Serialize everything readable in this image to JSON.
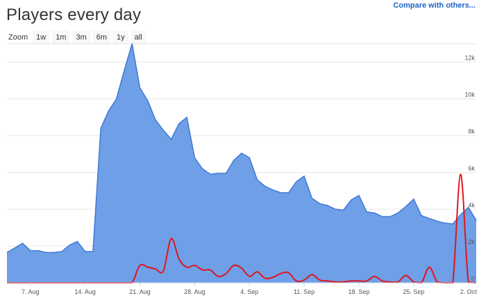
{
  "page": {
    "title": "Players every day",
    "compare_link": "Compare with others...",
    "zoom_label": "Zoom",
    "zoom_options": [
      "1w",
      "1m",
      "3m",
      "6m",
      "1y",
      "all"
    ]
  },
  "colors": {
    "area_fill": "#6f9fe6",
    "area_line": "#3f79d6",
    "series2": "#e0141e",
    "grid": "#e6e6e6"
  },
  "chart_data": {
    "type": "area",
    "title": "Players every day",
    "xlabel": "",
    "ylabel": "",
    "ylim": [
      0,
      13000
    ],
    "grid": true,
    "y_ticks": [
      0,
      2000,
      4000,
      6000,
      8000,
      10000,
      12000
    ],
    "y_tick_labels": [
      "0",
      "2k",
      "4k",
      "6k",
      "8k",
      "10k",
      "12k"
    ],
    "x_ticks": [
      "2023-08-07",
      "2023-08-14",
      "2023-08-21",
      "2023-08-28",
      "2023-09-04",
      "2023-09-11",
      "2023-09-18",
      "2023-09-25",
      "2023-10-02"
    ],
    "x_tick_labels": [
      "7. Aug",
      "14. Aug",
      "21. Aug",
      "28. Aug",
      "4. Sep",
      "11. Sep",
      "18. Sep",
      "25. Sep",
      "2. Oct"
    ],
    "x": [
      "2023-08-04",
      "2023-08-05",
      "2023-08-06",
      "2023-08-07",
      "2023-08-08",
      "2023-08-09",
      "2023-08-10",
      "2023-08-11",
      "2023-08-12",
      "2023-08-13",
      "2023-08-14",
      "2023-08-15",
      "2023-08-16",
      "2023-08-17",
      "2023-08-18",
      "2023-08-19",
      "2023-08-20",
      "2023-08-21",
      "2023-08-22",
      "2023-08-23",
      "2023-08-24",
      "2023-08-25",
      "2023-08-26",
      "2023-08-27",
      "2023-08-28",
      "2023-08-29",
      "2023-08-30",
      "2023-08-31",
      "2023-09-01",
      "2023-09-02",
      "2023-09-03",
      "2023-09-04",
      "2023-09-05",
      "2023-09-06",
      "2023-09-07",
      "2023-09-08",
      "2023-09-09",
      "2023-09-10",
      "2023-09-11",
      "2023-09-12",
      "2023-09-13",
      "2023-09-14",
      "2023-09-15",
      "2023-09-16",
      "2023-09-17",
      "2023-09-18",
      "2023-09-19",
      "2023-09-20",
      "2023-09-21",
      "2023-09-22",
      "2023-09-23",
      "2023-09-24",
      "2023-09-25",
      "2023-09-26",
      "2023-09-27",
      "2023-09-28",
      "2023-09-29",
      "2023-09-30",
      "2023-10-01",
      "2023-10-02",
      "2023-10-03"
    ],
    "series": [
      {
        "values": [
          1650,
          1900,
          2150,
          1750,
          1750,
          1650,
          1650,
          1700,
          2050,
          2250,
          1700,
          1700,
          8400,
          9350,
          10000,
          11550,
          13000,
          10600,
          9900,
          8850,
          8300,
          7800,
          8650,
          9000,
          6800,
          6200,
          5900,
          5950,
          5950,
          6650,
          7050,
          6800,
          5600,
          5250,
          5050,
          4900,
          4900,
          5500,
          5800,
          4600,
          4300,
          4200,
          4000,
          3950,
          4500,
          4750,
          3850,
          3800,
          3600,
          3600,
          3800,
          4150,
          4550,
          3650,
          3500,
          3350,
          3250,
          3200,
          3700,
          4100,
          3400
        ]
      },
      {
        "values": [
          0,
          0,
          0,
          0,
          0,
          0,
          0,
          0,
          0,
          0,
          0,
          0,
          0,
          0,
          0,
          0,
          0,
          950,
          850,
          750,
          650,
          2400,
          1300,
          850,
          950,
          700,
          700,
          350,
          500,
          950,
          800,
          350,
          600,
          250,
          300,
          500,
          550,
          100,
          150,
          450,
          150,
          100,
          50,
          50,
          100,
          100,
          100,
          350,
          100,
          50,
          50,
          400,
          50,
          0,
          850,
          50,
          0,
          0,
          5900,
          50,
          0
        ]
      }
    ]
  }
}
